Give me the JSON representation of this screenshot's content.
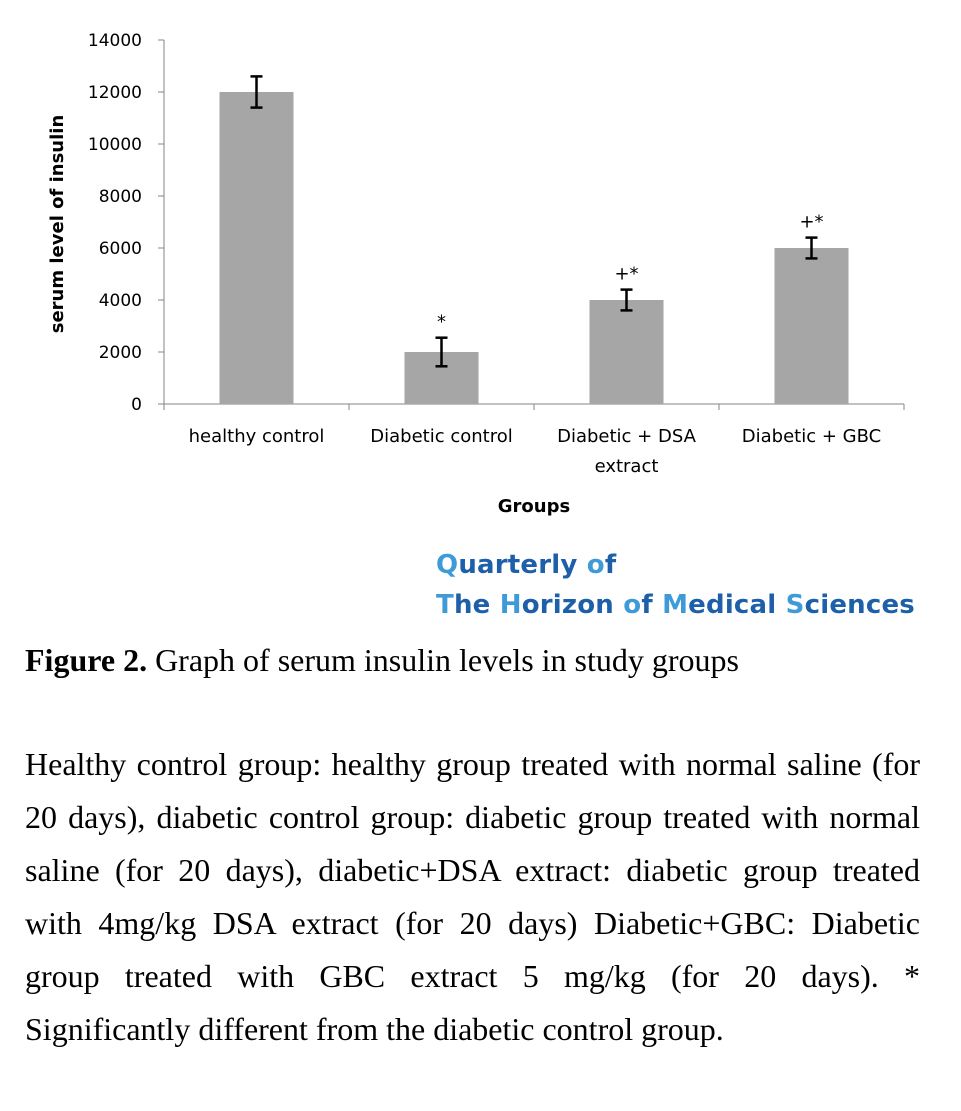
{
  "chart_data": {
    "type": "bar",
    "categories": [
      "healthy control",
      "Diabetic control",
      "Diabetic + DSA extract",
      "Diabetic + GBC"
    ],
    "category_label_lines": [
      [
        "healthy control"
      ],
      [
        "Diabetic control"
      ],
      [
        "Diabetic + DSA",
        "extract"
      ],
      [
        "Diabetic + GBC"
      ]
    ],
    "values": [
      12000,
      2000,
      4000,
      6000
    ],
    "error": [
      600,
      550,
      400,
      400
    ],
    "annotations": [
      "",
      "*",
      "+*",
      "+*"
    ],
    "xlabel": "Groups",
    "ylabel": "serum level of insulin",
    "ylim": [
      0,
      14000
    ],
    "yticks": [
      0,
      2000,
      4000,
      6000,
      8000,
      10000,
      12000,
      14000
    ],
    "grid": false,
    "legend": "none",
    "bar_color": "#a6a6a6"
  },
  "watermark": {
    "line1": "Quarterly of",
    "line2": "The Horizon of Medical Sciences",
    "color_primary": "#1d5fa8",
    "color_accent": "#3f9ad8"
  },
  "caption": {
    "label": "Figure 2.",
    "text": "Graph of serum insulin levels in study groups"
  },
  "description": "Healthy control group: healthy group treated with normal saline (for 20 days), diabetic control group: diabetic group treated with normal saline (for 20 days), diabetic+DSA extract: diabetic group treated with 4mg/kg DSA extract (for 20 days) Diabetic+GBC: Diabetic group treated with GBC extract 5 mg/kg (for 20 days). * Significantly different from the diabetic control group."
}
